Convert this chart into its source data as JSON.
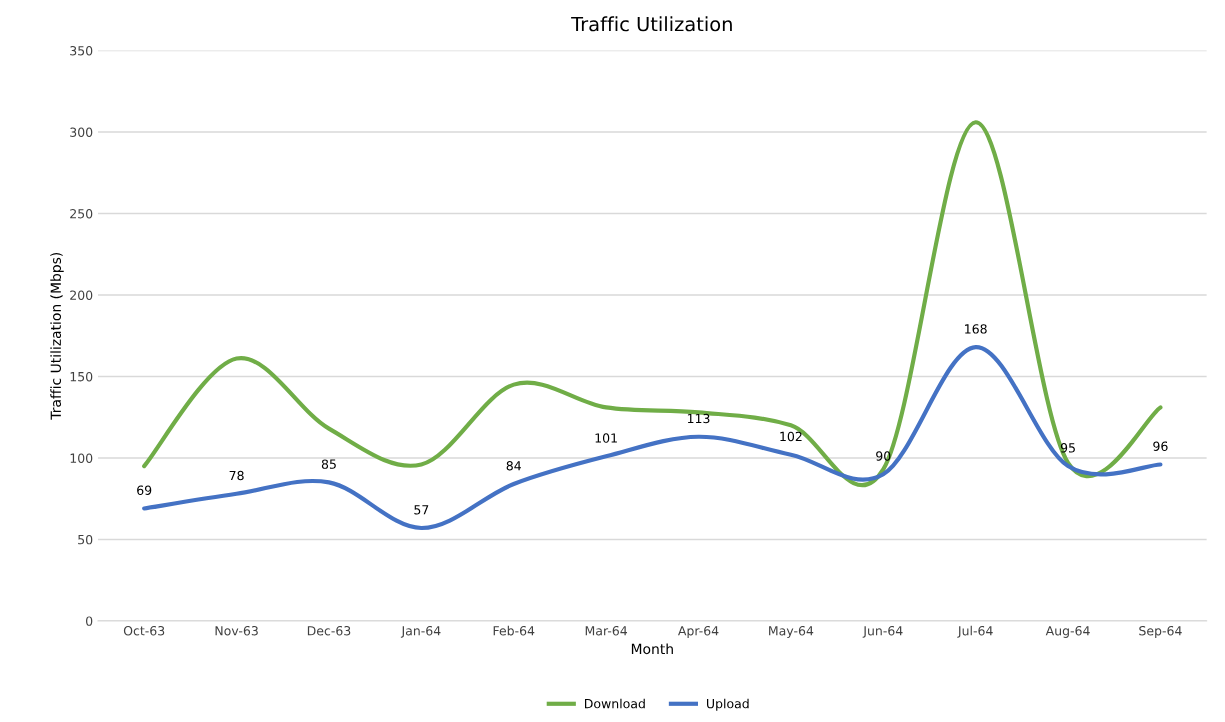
{
  "chart_data": {
    "type": "line",
    "title": "Traffic Utilization",
    "xlabel": "Month",
    "ylabel": "Traffic Utilization (Mbps)",
    "categories": [
      "Oct-63",
      "Nov-63",
      "Dec-63",
      "Jan-64",
      "Feb-64",
      "Mar-64",
      "Apr-64",
      "May-64",
      "Jun-64",
      "Jul-64",
      "Aug-64",
      "Sep-64"
    ],
    "series": [
      {
        "name": "Download",
        "color": "#70ad47",
        "values": [
          95,
          161,
          118,
          96,
          145,
          131,
          128,
          120,
          93,
          306,
          97,
          131
        ]
      },
      {
        "name": "Upload",
        "color": "#4472c4",
        "values": [
          69,
          78,
          85,
          57,
          84,
          101,
          113,
          102,
          90,
          168,
          95,
          96
        ],
        "value_labels": [
          "69",
          "78",
          "85",
          "57",
          "84",
          "101",
          "113",
          "102",
          "90",
          "168",
          "95",
          "96"
        ]
      }
    ],
    "ylim": [
      0,
      350
    ],
    "yticks": [
      0,
      50,
      100,
      150,
      200,
      250,
      300,
      350
    ],
    "grid": "y",
    "legend": "bottom",
    "marker": "none",
    "line_style": "solid"
  }
}
